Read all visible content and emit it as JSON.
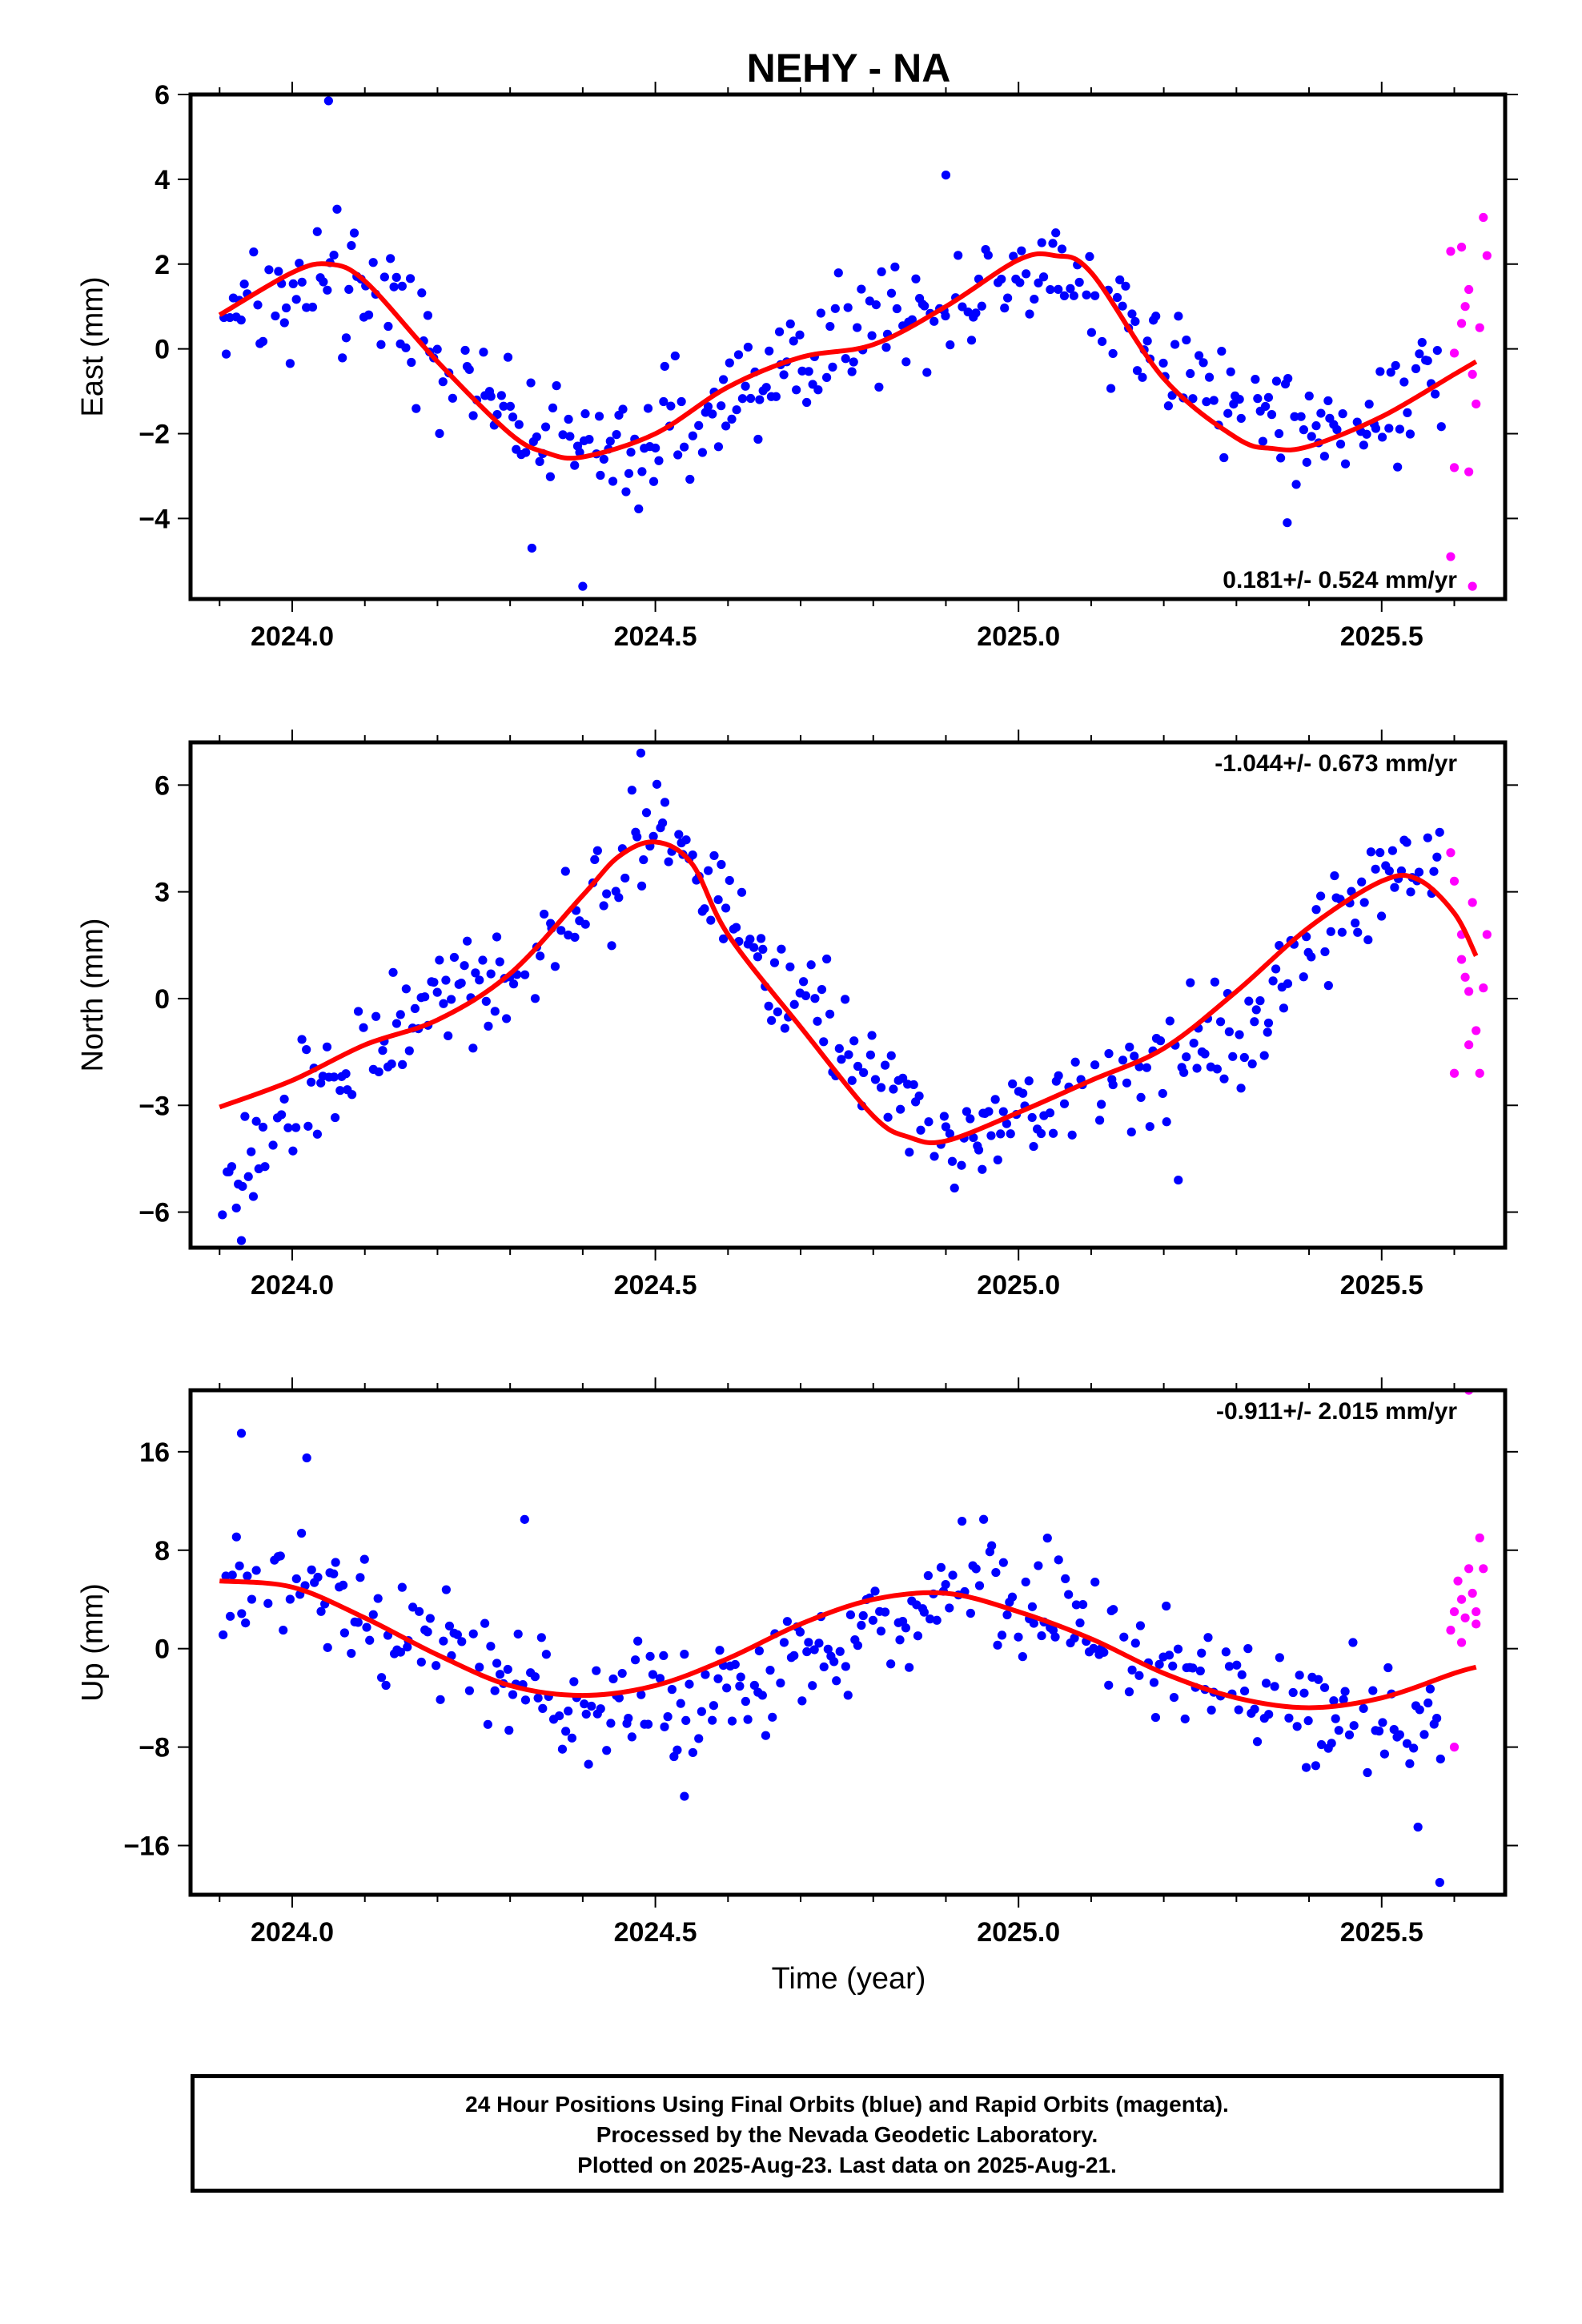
{
  "title": "NEHY - NA",
  "xlabel": "Time (year)",
  "x_ticks": [
    "2024.0",
    "2024.5",
    "2025.0",
    "2025.5"
  ],
  "colors": {
    "final": "#0000ff",
    "rapid": "#ff00ff",
    "model": "#ff0000"
  },
  "footer": {
    "line1": "24 Hour Positions Using Final Orbits (blue) and Rapid Orbits (magenta).",
    "line2": "Processed by the Nevada Geodetic Laboratory.",
    "line3": "Plotted on 2025-Aug-23. Last data on 2025-Aug-21."
  },
  "chart_data": [
    {
      "type": "scatter",
      "ylabel": "East (mm)",
      "rate_text": "0.181+/- 0.524 mm/yr",
      "rate_position": "bottom-right",
      "xlim": [
        2023.86,
        2025.67
      ],
      "ylim": [
        -5.9,
        6.0
      ],
      "yticks": [
        -4,
        -2,
        0,
        2,
        4,
        6
      ],
      "yticklabels": [
        "−4",
        "−2",
        "0",
        "2",
        "4",
        "6"
      ],
      "model": {
        "x": [
          2023.9,
          2024.0,
          2024.05,
          2024.1,
          2024.2,
          2024.3,
          2024.35,
          2024.4,
          2024.5,
          2024.6,
          2024.7,
          2024.8,
          2024.9,
          2025.0,
          2025.05,
          2025.1,
          2025.2,
          2025.3,
          2025.35,
          2025.4,
          2025.5,
          2025.6,
          2025.63
        ],
        "y": [
          0.8,
          1.8,
          2.0,
          1.6,
          -0.3,
          -2.0,
          -2.45,
          -2.55,
          -2.0,
          -0.9,
          -0.2,
          0.1,
          1.0,
          2.1,
          2.2,
          1.8,
          -0.7,
          -2.1,
          -2.35,
          -2.3,
          -1.6,
          -0.6,
          -0.3
        ]
      },
      "final_trend": {
        "x": [
          2023.9,
          2024.1,
          2024.3,
          2024.45,
          2024.7,
          2024.9,
          2025.05,
          2025.25,
          2025.45,
          2025.58
        ],
        "y": [
          1.0,
          1.6,
          -1.7,
          -2.6,
          -0.2,
          1.3,
          2.0,
          -1.0,
          -1.9,
          -0.5
        ]
      },
      "final_spread": 1.0,
      "final_outliers": [
        [
          2024.05,
          5.85
        ],
        [
          2024.4,
          -5.6
        ],
        [
          2024.33,
          -4.7
        ],
        [
          2025.37,
          -4.1
        ],
        [
          2024.9,
          4.1
        ]
      ],
      "rapid_points": [
        [
          2025.595,
          2.3
        ],
        [
          2025.6,
          -0.1
        ],
        [
          2025.61,
          2.4
        ],
        [
          2025.615,
          1.0
        ],
        [
          2025.62,
          1.4
        ],
        [
          2025.625,
          -0.6
        ],
        [
          2025.63,
          -1.3
        ],
        [
          2025.64,
          3.1
        ],
        [
          2025.645,
          2.2
        ],
        [
          2025.6,
          -2.8
        ],
        [
          2025.595,
          -4.9
        ],
        [
          2025.62,
          -2.9
        ],
        [
          2025.625,
          -5.6
        ],
        [
          2025.61,
          0.6
        ],
        [
          2025.635,
          0.5
        ]
      ]
    },
    {
      "type": "scatter",
      "ylabel": "North (mm)",
      "rate_text": "-1.044+/- 0.673 mm/yr",
      "rate_position": "top-right",
      "xlim": [
        2023.86,
        2025.67
      ],
      "ylim": [
        -7.0,
        7.2
      ],
      "yticks": [
        -6,
        -3,
        0,
        3,
        6
      ],
      "yticklabels": [
        "−6",
        "−3",
        "0",
        "3",
        "6"
      ],
      "model": {
        "x": [
          2023.9,
          2024.0,
          2024.1,
          2024.2,
          2024.3,
          2024.4,
          2024.45,
          2024.5,
          2024.55,
          2024.6,
          2024.7,
          2024.8,
          2024.85,
          2024.9,
          2025.0,
          2025.1,
          2025.2,
          2025.3,
          2025.4,
          2025.5,
          2025.55,
          2025.6,
          2025.63
        ],
        "y": [
          -3.05,
          -2.3,
          -1.3,
          -0.6,
          0.7,
          2.9,
          4.0,
          4.4,
          3.8,
          1.8,
          -0.8,
          -3.3,
          -3.9,
          -4.0,
          -3.2,
          -2.3,
          -1.4,
          0.2,
          2.0,
          3.3,
          3.35,
          2.4,
          1.2
        ]
      },
      "final_trend": {
        "x": [
          2023.9,
          2024.0,
          2024.2,
          2024.35,
          2024.5,
          2024.6,
          2024.75,
          2024.9,
          2025.1,
          2025.3,
          2025.45,
          2025.58
        ],
        "y": [
          -5.2,
          -3.0,
          -0.2,
          1.4,
          4.8,
          2.2,
          -0.8,
          -4.0,
          -2.4,
          -1.0,
          2.8,
          3.8
        ]
      },
      "final_spread": 1.1,
      "final_outliers": [
        [
          2023.93,
          -6.8
        ],
        [
          2024.48,
          6.9
        ],
        [
          2025.22,
          -5.1
        ],
        [
          2024.95,
          -4.8
        ]
      ],
      "rapid_points": [
        [
          2025.595,
          4.1
        ],
        [
          2025.6,
          3.3
        ],
        [
          2025.61,
          1.8
        ],
        [
          2025.615,
          0.6
        ],
        [
          2025.62,
          0.2
        ],
        [
          2025.625,
          2.7
        ],
        [
          2025.63,
          -0.9
        ],
        [
          2025.64,
          0.3
        ],
        [
          2025.6,
          -2.1
        ],
        [
          2025.635,
          -2.1
        ],
        [
          2025.62,
          -1.3
        ],
        [
          2025.61,
          1.1
        ],
        [
          2025.645,
          1.8
        ]
      ]
    },
    {
      "type": "scatter",
      "ylabel": "Up (mm)",
      "rate_text": "-0.911+/- 2.015 mm/yr",
      "rate_position": "top-right",
      "xlim": [
        2023.86,
        2025.67
      ],
      "ylim": [
        -20,
        21
      ],
      "yticks": [
        -16,
        -8,
        0,
        8,
        16
      ],
      "yticklabels": [
        "−16",
        "−8",
        "0",
        "8",
        "16"
      ],
      "model": {
        "x": [
          2023.9,
          2024.0,
          2024.1,
          2024.2,
          2024.3,
          2024.4,
          2024.5,
          2024.6,
          2024.7,
          2024.8,
          2024.9,
          2025.0,
          2025.1,
          2025.2,
          2025.3,
          2025.4,
          2025.5,
          2025.6,
          2025.63
        ],
        "y": [
          5.5,
          5.0,
          2.5,
          -0.5,
          -3.0,
          -3.8,
          -3.0,
          -0.8,
          2.0,
          4.0,
          4.5,
          3.0,
          0.8,
          -2.0,
          -4.0,
          -4.8,
          -4.0,
          -2.0,
          -1.5
        ]
      },
      "final_trend": {
        "x": [
          2023.9,
          2024.0,
          2024.2,
          2024.4,
          2024.6,
          2024.8,
          2024.95,
          2025.1,
          2025.3,
          2025.45,
          2025.58
        ],
        "y": [
          6.0,
          5.5,
          0.0,
          -4.5,
          -4.0,
          2.5,
          5.0,
          2.5,
          -3.5,
          -5.5,
          -6.0
        ]
      },
      "final_spread": 3.2,
      "final_outliers": [
        [
          2023.93,
          17.5
        ],
        [
          2024.02,
          15.5
        ],
        [
          2025.58,
          -19.0
        ],
        [
          2024.32,
          10.5
        ],
        [
          2024.54,
          -12.0
        ],
        [
          2025.55,
          -14.5
        ]
      ],
      "rapid_points": [
        [
          2025.595,
          1.5
        ],
        [
          2025.6,
          3.0
        ],
        [
          2025.605,
          5.5
        ],
        [
          2025.61,
          4.0
        ],
        [
          2025.615,
          2.5
        ],
        [
          2025.62,
          6.5
        ],
        [
          2025.625,
          4.5
        ],
        [
          2025.63,
          3.0
        ],
        [
          2025.635,
          9.0
        ],
        [
          2025.64,
          6.5
        ],
        [
          2025.6,
          -8.0
        ],
        [
          2025.62,
          21.0
        ],
        [
          2025.63,
          2.0
        ],
        [
          2025.61,
          0.5
        ]
      ]
    }
  ]
}
